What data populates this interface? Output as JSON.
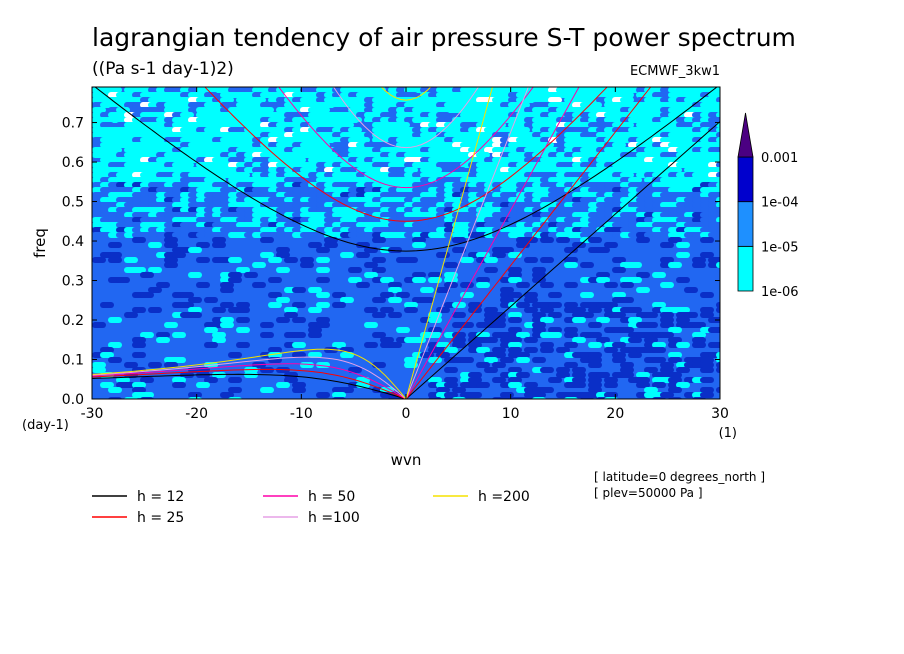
{
  "chart_data": {
    "type": "heatmap",
    "title": "lagrangian tendency of air pressure S-T power spectrum",
    "subtitle": "((Pa s-1 day-1)2)",
    "dataset": "ECMWF_3kw1",
    "xlabel": "wvn",
    "ylabel": "freq",
    "x_unit": "(1)",
    "y_unit": "(day-1)",
    "xlim": [
      -30,
      30
    ],
    "ylim": [
      0,
      0.79
    ],
    "x_ticks": [
      "-30",
      "-20",
      "-10",
      "0",
      "10",
      "20",
      "30"
    ],
    "x_tick_values": [
      -30,
      -20,
      -10,
      0,
      10,
      20,
      30
    ],
    "y_ticks": [
      "0.0",
      "0.1",
      "0.2",
      "0.3",
      "0.4",
      "0.5",
      "0.6",
      "0.7"
    ],
    "y_tick_values": [
      0,
      0.1,
      0.2,
      0.3,
      0.4,
      0.5,
      0.6,
      0.7
    ],
    "colorbar": {
      "labels": [
        "1e-06",
        "1e-05",
        "1e-04",
        "0.001"
      ],
      "levels": [
        1e-06,
        1e-05,
        0.0001,
        0.001
      ],
      "colors": [
        "#00ffff",
        "#1e90ff",
        "#0000cd",
        "#4b0082"
      ],
      "band_colors": [
        "#1e90ff",
        "#0000cd",
        "#4b0082"
      ],
      "extend": "max"
    },
    "contour_colors": {
      "white": "#ffffff",
      "cyan": "#00ffff",
      "blue": "#2167f2",
      "darkblue": "#0a2fc7"
    },
    "dispersion_curves": [
      {
        "label": "h = 12",
        "h": 12,
        "color": "#000000"
      },
      {
        "label": "h = 25",
        "h": 25,
        "color": "#ff0000"
      },
      {
        "label": "h = 50",
        "h": 50,
        "color": "#ff00aa"
      },
      {
        "label": "h =100",
        "h": 100,
        "color": "#e6a0e6"
      },
      {
        "label": "h =200",
        "h": 200,
        "color": "#f5e200"
      }
    ],
    "annotations": [
      "[ latitude=0 degrees_north ]",
      "[ plev=50000 Pa ]"
    ]
  }
}
